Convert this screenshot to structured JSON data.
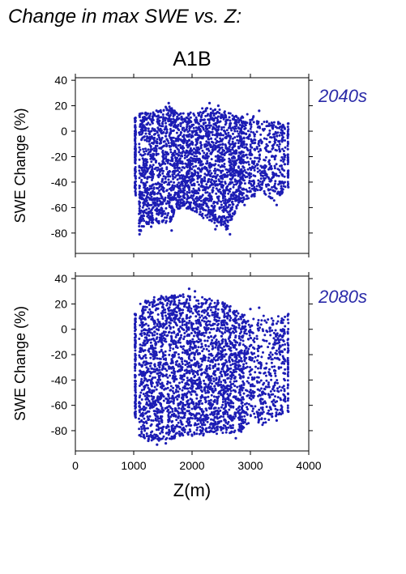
{
  "figure": {
    "title": "Change in max SWE vs. Z:",
    "scenario": "A1B",
    "marker_color": "#1c1cb4",
    "label_color": "#2a2aa8"
  },
  "chart_data": [
    {
      "type": "scatter",
      "period_label": "2040s",
      "ylabel": "SWE Change (%)",
      "xlabel": "",
      "xlim": [
        0,
        4000
      ],
      "ylim": [
        -96,
        42
      ],
      "xticks": [
        0,
        1000,
        2000,
        3000,
        4000
      ],
      "yticks": [
        -80,
        -60,
        -40,
        -20,
        0,
        20,
        40
      ],
      "ytick_labels": [
        "-80",
        "-60",
        "-40",
        "-20",
        "0",
        "20",
        "40"
      ],
      "grid": false,
      "series": [
        {
          "color": "#1c1cb4",
          "envelope": [
            {
              "x": 1020,
              "ymin": -45,
              "ymax": 11
            },
            {
              "x": 1100,
              "ymin": -80,
              "ymax": 14
            },
            {
              "x": 1300,
              "ymin": -72,
              "ymax": 15
            },
            {
              "x": 1600,
              "ymin": -73,
              "ymax": 20
            },
            {
              "x": 1800,
              "ymin": -60,
              "ymax": 14
            },
            {
              "x": 2000,
              "ymin": -62,
              "ymax": 15
            },
            {
              "x": 2300,
              "ymin": -72,
              "ymax": 20
            },
            {
              "x": 2600,
              "ymin": -78,
              "ymax": 15
            },
            {
              "x": 2800,
              "ymin": -58,
              "ymax": 12
            },
            {
              "x": 3000,
              "ymin": -56,
              "ymax": 14
            },
            {
              "x": 3200,
              "ymin": -48,
              "ymax": 8
            },
            {
              "x": 3400,
              "ymin": -55,
              "ymax": 8
            },
            {
              "x": 3650,
              "ymin": -45,
              "ymax": 7
            }
          ],
          "points": [
            [
              1600,
              22
            ],
            [
              2300,
              22
            ],
            [
              2450,
              20
            ],
            [
              3150,
              16
            ],
            [
              1100,
              -81
            ],
            [
              2650,
              -81
            ],
            [
              1650,
              -78
            ],
            [
              1300,
              -75
            ],
            [
              2400,
              -77
            ],
            [
              3650,
              -44
            ],
            [
              3650,
              6
            ],
            [
              3450,
              -58
            ],
            [
              1020,
              10
            ],
            [
              1020,
              -44
            ],
            [
              2900,
              -58
            ]
          ]
        }
      ]
    },
    {
      "type": "scatter",
      "period_label": "2080s",
      "ylabel": "SWE Change (%)",
      "xlabel": "Z(m)",
      "xlim": [
        0,
        4000
      ],
      "ylim": [
        -96,
        42
      ],
      "xticks": [
        0,
        1000,
        2000,
        3000,
        4000
      ],
      "xtick_labels": [
        "0",
        "1000",
        "2000",
        "3000",
        "4000"
      ],
      "yticks": [
        -80,
        -60,
        -40,
        -20,
        0,
        20,
        40
      ],
      "ytick_labels": [
        "-80",
        "-60",
        "-40",
        "-20",
        "0",
        "20",
        "40"
      ],
      "grid": false,
      "series": [
        {
          "color": "#1c1cb4",
          "envelope": [
            {
              "x": 1020,
              "ymin": -68,
              "ymax": 12
            },
            {
              "x": 1100,
              "ymin": -85,
              "ymax": 20
            },
            {
              "x": 1300,
              "ymin": -88,
              "ymax": 25
            },
            {
              "x": 1600,
              "ymin": -88,
              "ymax": 27
            },
            {
              "x": 1900,
              "ymin": -84,
              "ymax": 28
            },
            {
              "x": 2200,
              "ymin": -84,
              "ymax": 25
            },
            {
              "x": 2500,
              "ymin": -82,
              "ymax": 22
            },
            {
              "x": 2800,
              "ymin": -82,
              "ymax": 15
            },
            {
              "x": 3000,
              "ymin": -78,
              "ymax": 8
            },
            {
              "x": 3200,
              "ymin": -76,
              "ymax": 12
            },
            {
              "x": 3400,
              "ymin": -70,
              "ymax": 10
            },
            {
              "x": 3650,
              "ymin": -64,
              "ymax": 13
            }
          ],
          "points": [
            [
              1950,
              32
            ],
            [
              2050,
              30
            ],
            [
              1500,
              25
            ],
            [
              2300,
              24
            ],
            [
              3150,
              17
            ],
            [
              3000,
              16
            ],
            [
              1400,
              -91
            ],
            [
              1550,
              -90
            ],
            [
              1250,
              -88
            ],
            [
              2750,
              -86
            ],
            [
              3450,
              -72
            ],
            [
              3650,
              -65
            ],
            [
              3650,
              12
            ],
            [
              1020,
              12
            ],
            [
              1020,
              -66
            ]
          ]
        }
      ]
    }
  ]
}
